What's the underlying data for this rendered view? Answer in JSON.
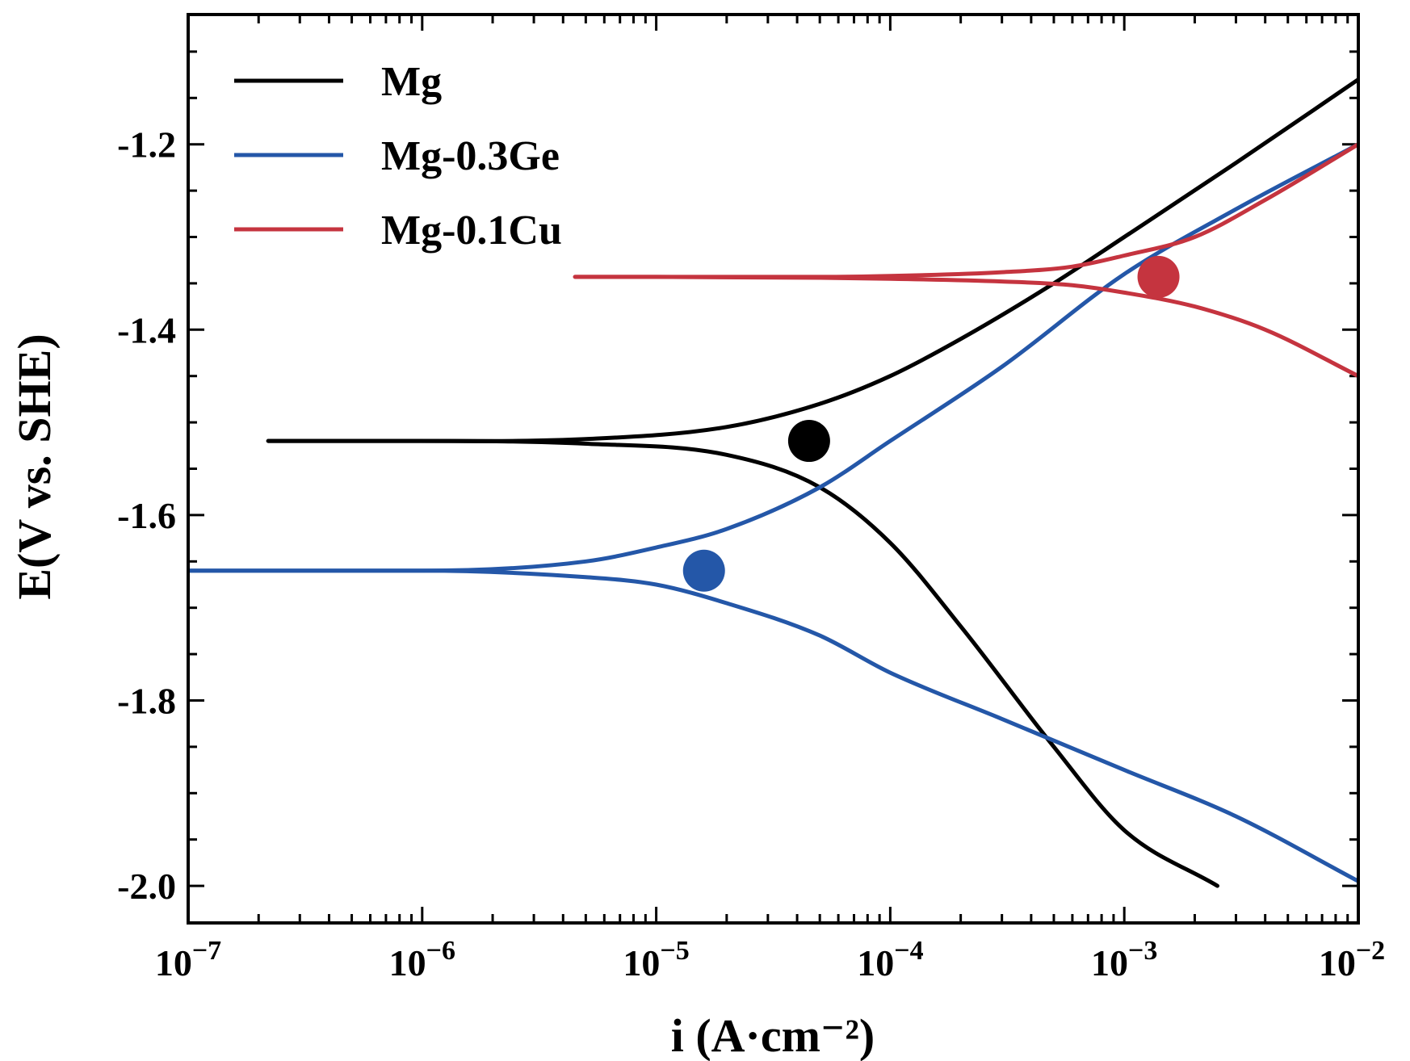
{
  "chart_data": {
    "type": "line",
    "xlabel": "i (A·cm⁻²)",
    "ylabel": "E(V vs. SHE)",
    "x_scale": "log",
    "xlim": [
      1e-07,
      0.01
    ],
    "ylim": [
      -2.04,
      -1.06
    ],
    "x_tick_labels": [
      {
        "value": 1e-07,
        "base": "10",
        "exp": "−7"
      },
      {
        "value": 1e-06,
        "base": "10",
        "exp": "−6"
      },
      {
        "value": 1e-05,
        "base": "10",
        "exp": "−5"
      },
      {
        "value": 0.0001,
        "base": "10",
        "exp": "−4"
      },
      {
        "value": 0.001,
        "base": "10",
        "exp": "−3"
      },
      {
        "value": 0.01,
        "base": "10",
        "exp": "−2"
      }
    ],
    "y_tick_labels": [
      {
        "value": -1.2,
        "label": "-1.2"
      },
      {
        "value": -1.4,
        "label": "-1.4"
      },
      {
        "value": -1.6,
        "label": "-1.6"
      },
      {
        "value": -1.8,
        "label": "-1.8"
      },
      {
        "value": -2.0,
        "label": "-2.0"
      }
    ],
    "legend_position": "top-left",
    "grid": false,
    "series": [
      {
        "name": "Mg",
        "color": "#000000",
        "corrosion_potential": -1.52,
        "corrosion_current": 4.5e-05,
        "anodic_branch": {
          "x": [
            2.2e-07,
            1e-06,
            5e-06,
            2e-05,
            5e-05,
            0.0001,
            0.0002,
            0.0005,
            0.001,
            0.003,
            0.01
          ],
          "y": [
            -1.52,
            -1.52,
            -1.518,
            -1.505,
            -1.48,
            -1.45,
            -1.41,
            -1.35,
            -1.3,
            -1.22,
            -1.13
          ]
        },
        "cathodic_branch": {
          "x": [
            2.2e-07,
            1e-06,
            5e-06,
            2e-05,
            5e-05,
            0.0001,
            0.0002,
            0.0005,
            0.001,
            0.0025
          ],
          "y": [
            -1.52,
            -1.52,
            -1.523,
            -1.535,
            -1.57,
            -1.63,
            -1.72,
            -1.85,
            -1.94,
            -2.0
          ]
        }
      },
      {
        "name": "Mg-0.3Ge",
        "color": "#2457a8",
        "corrosion_potential": -1.66,
        "corrosion_current": 1.6e-05,
        "anodic_branch": {
          "x": [
            1e-07,
            1e-06,
            5e-06,
            1e-05,
            2e-05,
            5e-05,
            0.0001,
            0.0003,
            0.001,
            0.003,
            0.01
          ],
          "y": [
            -1.66,
            -1.66,
            -1.65,
            -1.635,
            -1.615,
            -1.57,
            -1.52,
            -1.44,
            -1.34,
            -1.27,
            -1.2
          ]
        },
        "cathodic_branch": {
          "x": [
            1e-07,
            1e-06,
            5e-06,
            1e-05,
            2e-05,
            5e-05,
            0.0001,
            0.0003,
            0.001,
            0.003,
            0.01
          ],
          "y": [
            -1.66,
            -1.66,
            -1.667,
            -1.675,
            -1.695,
            -1.73,
            -1.77,
            -1.82,
            -1.875,
            -1.925,
            -1.995
          ]
        }
      },
      {
        "name": "Mg-0.1Cu",
        "color": "#c5343f",
        "corrosion_potential": -1.343,
        "corrosion_current": 0.0014,
        "anodic_branch": {
          "x": [
            4.5e-06,
            1e-05,
            5e-05,
            0.0001,
            0.0003,
            0.0006,
            0.001,
            0.002,
            0.004,
            0.01
          ],
          "y": [
            -1.343,
            -1.343,
            -1.343,
            -1.342,
            -1.338,
            -1.332,
            -1.32,
            -1.3,
            -1.26,
            -1.2
          ]
        },
        "cathodic_branch": {
          "x": [
            4.5e-06,
            1e-05,
            5e-05,
            0.0001,
            0.0003,
            0.0006,
            0.001,
            0.002,
            0.004,
            0.01
          ],
          "y": [
            -1.343,
            -1.343,
            -1.344,
            -1.345,
            -1.348,
            -1.352,
            -1.36,
            -1.375,
            -1.4,
            -1.45
          ]
        }
      }
    ]
  }
}
